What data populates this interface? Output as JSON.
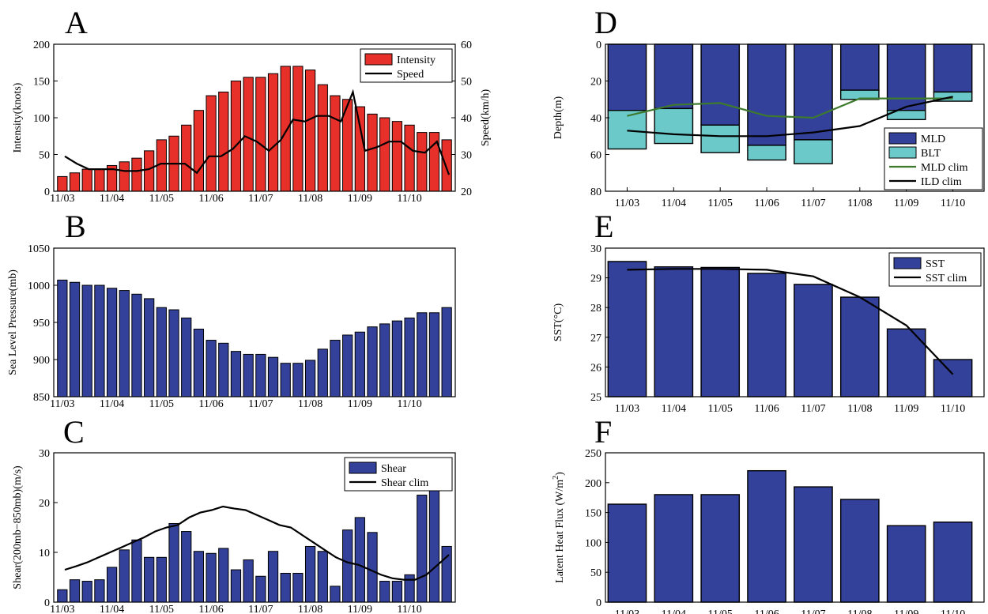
{
  "colors": {
    "intensity_bar": "#e8302a",
    "navy_bar": "#33419a",
    "blt_bar": "#6cc9c9",
    "mld_clim_line": "#3d7a2e",
    "black_line": "#000000"
  },
  "chart_data": [
    {
      "panel": "A",
      "type": "bar",
      "title": "",
      "xlabel": "",
      "ylabel": "Intensity(knots)",
      "ylabel_right": "Speed(km/h)",
      "ylim": [
        0,
        200
      ],
      "ylim_right": [
        20,
        60
      ],
      "yticks": [
        0,
        50,
        100,
        150,
        200
      ],
      "yticks_right": [
        20,
        30,
        40,
        50,
        60
      ],
      "xticklabels": [
        "11/03",
        "11/04",
        "11/05",
        "11/06",
        "11/07",
        "11/08",
        "11/09",
        "11/10"
      ],
      "legend": "top-right",
      "series": [
        {
          "name": "Intensity",
          "kind": "bar",
          "color": "#e8302a",
          "values": [
            20,
            25,
            30,
            30,
            35,
            40,
            45,
            55,
            70,
            75,
            90,
            110,
            130,
            135,
            150,
            155,
            155,
            160,
            170,
            170,
            165,
            145,
            130,
            125,
            115,
            105,
            100,
            95,
            90,
            80,
            80,
            70
          ]
        },
        {
          "name": "Speed",
          "kind": "line",
          "axis": "right",
          "color": "#000000",
          "values": [
            29.5,
            27.5,
            26,
            26,
            26,
            25.5,
            25.5,
            26,
            27.5,
            27.5,
            27.5,
            25,
            29.5,
            29.5,
            31.5,
            35,
            33.5,
            31,
            34,
            39.5,
            39,
            40.5,
            40.5,
            39,
            47,
            31,
            32,
            33.5,
            33.5,
            31,
            30.5,
            33.5,
            24.5
          ]
        }
      ]
    },
    {
      "panel": "B",
      "type": "bar",
      "title": "",
      "xlabel": "",
      "ylabel": "Sea Level Pressure(mb)",
      "ylim": [
        850,
        1050
      ],
      "yticks": [
        850,
        900,
        950,
        1000,
        1050
      ],
      "xticklabels": [
        "11/03",
        "11/04",
        "11/05",
        "11/06",
        "11/07",
        "11/08",
        "11/09",
        "11/10"
      ],
      "series": [
        {
          "name": "",
          "kind": "bar",
          "color": "#33419a",
          "values": [
            1007,
            1004,
            1000,
            1000,
            996,
            993,
            988,
            982,
            970,
            967,
            956,
            941,
            926,
            922,
            911,
            907,
            907,
            903,
            895,
            895,
            899,
            914,
            926,
            933,
            937,
            944,
            948,
            952,
            956,
            963,
            963,
            970
          ]
        }
      ]
    },
    {
      "panel": "C",
      "type": "bar",
      "title": "",
      "xlabel": "",
      "ylabel": "Shear(200mb−850mb)(m/s)",
      "ylim": [
        0,
        30
      ],
      "yticks": [
        0,
        10,
        20,
        30
      ],
      "xticklabels": [
        "11/03",
        "11/04",
        "11/05",
        "11/06",
        "11/07",
        "11/08",
        "11/09",
        "11/10"
      ],
      "legend": "top-right",
      "series": [
        {
          "name": "Shear",
          "kind": "bar",
          "color": "#33419a",
          "values": [
            2.5,
            4.5,
            4.2,
            4.5,
            7,
            10.5,
            12.5,
            9,
            9,
            15.8,
            14.2,
            10.2,
            9.8,
            10.8,
            6.5,
            8.5,
            5.2,
            10.2,
            5.8,
            5.8,
            11.2,
            10.2,
            3.2,
            14.5,
            17,
            14,
            4.2,
            4.2,
            5.5,
            21.5,
            22.5,
            11.2
          ]
        },
        {
          "name": "Shear clim",
          "kind": "line",
          "color": "#000000",
          "values": [
            6.5,
            7.2,
            8,
            9,
            10,
            11,
            12,
            13,
            14.2,
            15,
            15.5,
            17,
            18,
            18.5,
            19.2,
            18.8,
            18.5,
            17.5,
            16.5,
            15.5,
            15,
            13.5,
            12,
            10.5,
            9,
            8,
            7.5,
            6.5,
            5.5,
            4.8,
            4.5,
            4.5,
            5.5,
            7.5,
            9.5
          ]
        }
      ]
    },
    {
      "panel": "D",
      "type": "bar",
      "title": "",
      "xlabel": "",
      "ylabel": "Depth(m)",
      "ylim": [
        0,
        80
      ],
      "y_inverted": true,
      "yticks": [
        0,
        20,
        40,
        60,
        80
      ],
      "categories": [
        "11/03",
        "11/04",
        "11/05",
        "11/06",
        "11/07",
        "11/08",
        "11/09",
        "11/10"
      ],
      "legend": "bottom-right",
      "series": [
        {
          "name": "MLD",
          "kind": "bar",
          "color": "#33419a",
          "values": [
            36,
            35,
            44,
            55,
            52,
            25,
            36,
            26
          ]
        },
        {
          "name": "BLT",
          "kind": "stacked-bar",
          "color": "#6cc9c9",
          "values": [
            21,
            19,
            15,
            8,
            13,
            5,
            5,
            5
          ]
        },
        {
          "name": "MLD clim",
          "kind": "line",
          "color": "#3d7a2e",
          "values": [
            39,
            33,
            32,
            39,
            40,
            29.5,
            29.5,
            29.5
          ]
        },
        {
          "name": "ILD clim",
          "kind": "line",
          "color": "#000000",
          "values": [
            47,
            49,
            50,
            50,
            48,
            44.5,
            34,
            28.5
          ]
        }
      ]
    },
    {
      "panel": "E",
      "type": "bar",
      "title": "",
      "xlabel": "",
      "ylabel": "SST(°C)",
      "ylim": [
        25,
        30
      ],
      "yticks": [
        25,
        26,
        27,
        28,
        29,
        30
      ],
      "categories": [
        "11/03",
        "11/04",
        "11/05",
        "11/06",
        "11/07",
        "11/08",
        "11/09",
        "11/10"
      ],
      "legend": "top-right",
      "series": [
        {
          "name": "SST",
          "kind": "bar",
          "color": "#33419a",
          "values": [
            29.55,
            29.37,
            29.35,
            29.15,
            28.78,
            28.35,
            27.28,
            26.25
          ]
        },
        {
          "name": "SST clim",
          "kind": "line",
          "color": "#000000",
          "values": [
            29.27,
            29.3,
            29.3,
            29.27,
            29.05,
            28.35,
            27.4,
            25.75
          ]
        }
      ]
    },
    {
      "panel": "F",
      "type": "bar",
      "title": "",
      "xlabel": "",
      "ylabel": "Latent Heat Flux (W/m",
      "ylabel_sup": "2",
      "ylabel_end": ")",
      "ylim": [
        0,
        250
      ],
      "yticks": [
        0,
        50,
        100,
        150,
        200,
        250
      ],
      "categories": [
        "11/03",
        "11/04",
        "11/05",
        "11/06",
        "11/07",
        "11/08",
        "11/09",
        "11/10"
      ],
      "series": [
        {
          "name": "",
          "kind": "bar",
          "color": "#33419a",
          "values": [
            164,
            180,
            180,
            220,
            193,
            172,
            128,
            134
          ]
        }
      ]
    }
  ]
}
